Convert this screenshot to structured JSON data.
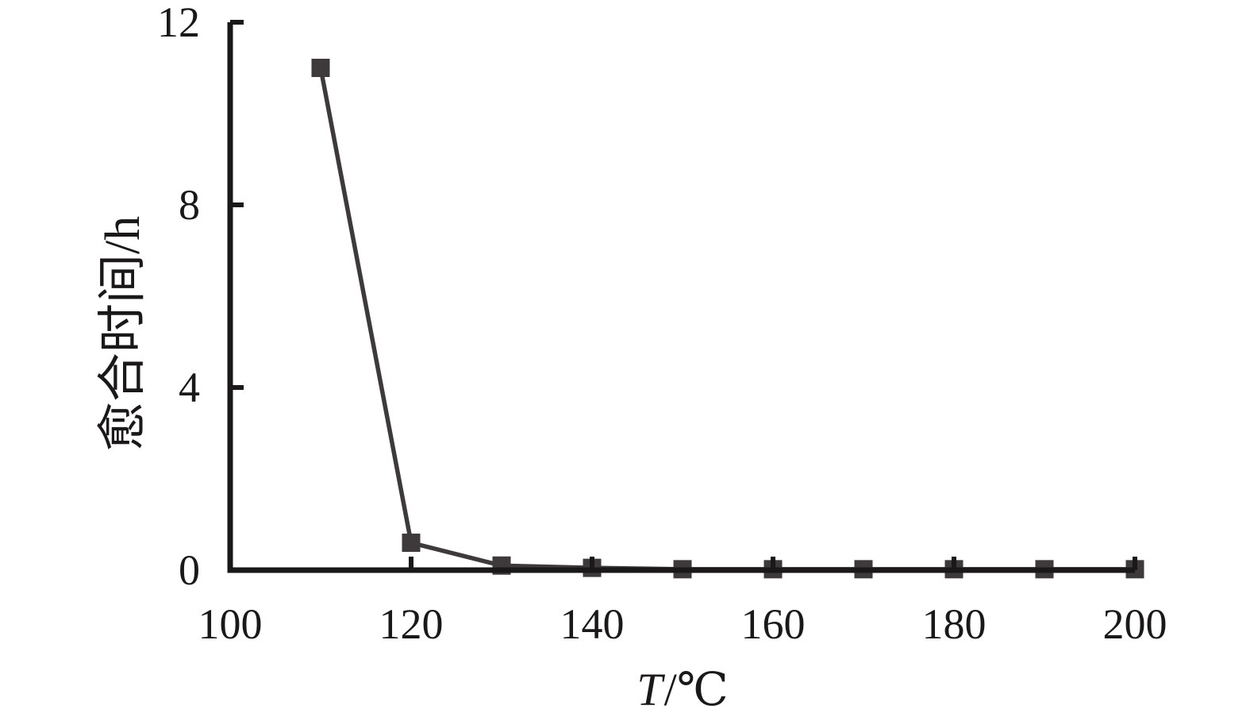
{
  "chart_data": {
    "type": "line",
    "title": "",
    "xlabel": "T/℃",
    "xlabel_var": "T",
    "xlabel_unit": "/℃",
    "ylabel": "愈合时间/h",
    "x": [
      110,
      120,
      130,
      140,
      150,
      160,
      170,
      180,
      190,
      200
    ],
    "y": [
      11,
      0.6,
      0.1,
      0.05,
      0.02,
      0.02,
      0.02,
      0.02,
      0.02,
      0.02
    ],
    "xlim": [
      100,
      200
    ],
    "ylim": [
      0,
      12
    ],
    "x_ticks": [
      100,
      120,
      140,
      160,
      180,
      200
    ],
    "x_tick_labels": [
      "100",
      "120",
      "140",
      "160",
      "180",
      "200"
    ],
    "x_tick_marks": [
      120,
      140,
      160,
      180,
      200
    ],
    "y_ticks": [
      0,
      4,
      8,
      12
    ],
    "y_tick_labels": [
      "0",
      "4",
      "8",
      "12"
    ],
    "y_tick_marks": [
      4,
      8,
      12
    ],
    "marker": "square",
    "grid": false,
    "legend": null,
    "colors": {
      "series": "#3e3a3b",
      "marker": "#3e3a3b",
      "axis": "#1b1819"
    }
  }
}
